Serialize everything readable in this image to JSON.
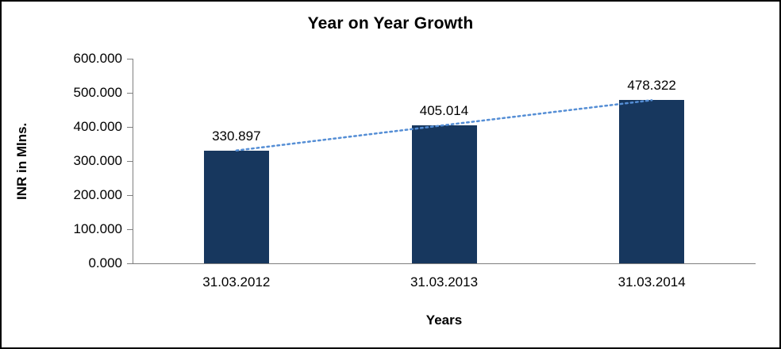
{
  "chart_data": {
    "type": "bar",
    "title": "Year on Year Growth",
    "xlabel": "Years",
    "ylabel": "INR in Mlns.",
    "categories": [
      "31.03.2012",
      "31.03.2013",
      "31.03.2014"
    ],
    "values": [
      330.897,
      405.014,
      478.322
    ],
    "value_labels": [
      "330.897",
      "405.014",
      "478.322"
    ],
    "ylim": [
      0,
      600
    ],
    "ytick_step": 100,
    "ytick_labels": [
      "0.000",
      "100.000",
      "200.000",
      "300.000",
      "400.000",
      "500.000",
      "600.000"
    ],
    "grid": false,
    "legend": "none",
    "bar_color": "#17375E",
    "axis_color": "#7F7F7F",
    "text_color": "#000000",
    "trendline": {
      "style": "dotted",
      "color": "#558ED5"
    }
  }
}
